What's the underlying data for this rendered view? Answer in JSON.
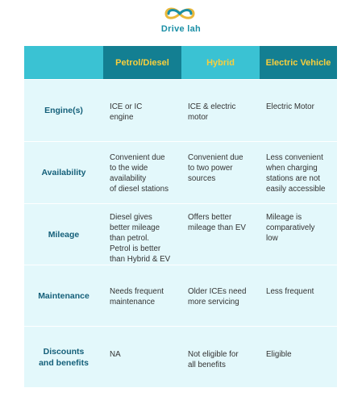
{
  "brand": {
    "name": "Drive lah",
    "icon": "infinity-car-icon",
    "color": "#1a8fa6"
  },
  "colors": {
    "header_bg": "#3ac2d3",
    "header_dark": "#137f92",
    "header_text": "#f9cf3c",
    "row_bg": "#e3f8fb",
    "label_text": "#15607a"
  },
  "table": {
    "headers": [
      "",
      "Petrol/Diesel",
      "Hybrid",
      "Electric Vehicle"
    ],
    "rows": [
      {
        "label": "Engine(s)",
        "values": [
          "ICE or IC\nengine",
          "ICE & electric\nmotor",
          "Electric Motor"
        ]
      },
      {
        "label": "Availability",
        "values": [
          "Convenient due\nto the wide\navailability\nof diesel stations",
          "Convenient due\nto two power\nsources",
          "Less convenient\nwhen charging\nstations are not\neasily accessible"
        ]
      },
      {
        "label": "Mileage",
        "values": [
          "Diesel gives\nbetter mileage\nthan petrol.\nPetrol is better\nthan Hybrid & EV",
          "Offers better\nmileage  than EV",
          "Mileage is\ncomparatively\nlow"
        ]
      },
      {
        "label": "Maintenance",
        "values": [
          "Needs frequent\nmaintenance",
          "Older ICEs need\nmore servicing",
          "Less frequent"
        ]
      },
      {
        "label": "Discounts\nand benefits",
        "values": [
          "NA",
          "Not eligible for\nall benefits",
          "Eligible"
        ]
      }
    ]
  }
}
